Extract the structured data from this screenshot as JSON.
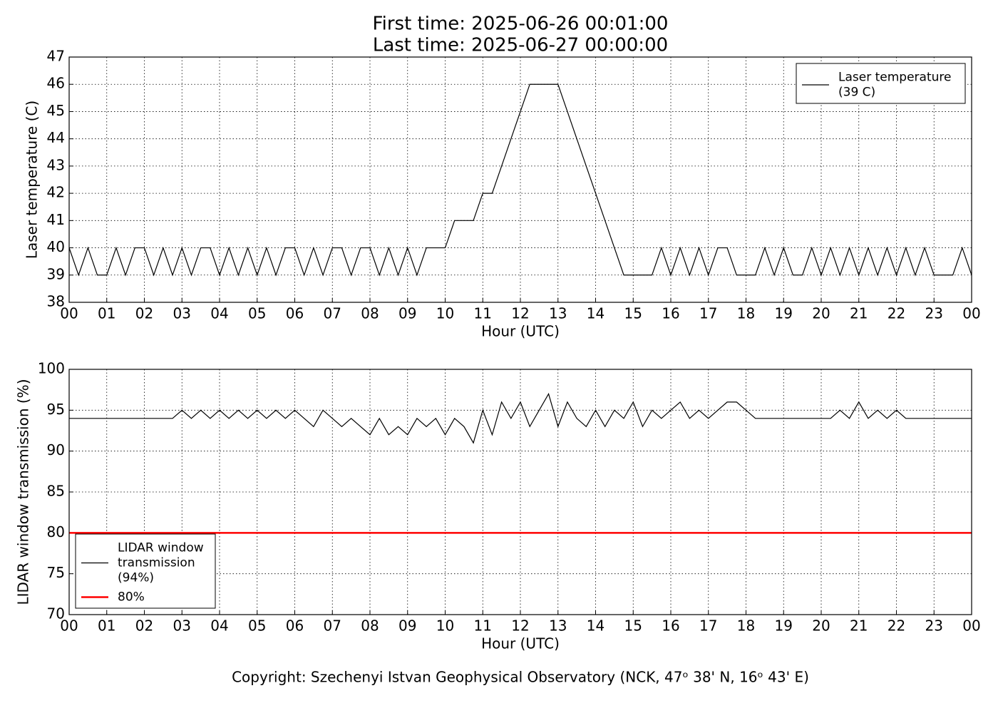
{
  "title": [
    "First time: 2025-06-26 00:01:00",
    "Last time: 2025-06-27 00:00:00"
  ],
  "footer": "Copyright: Szechenyi Istvan Geophysical Observatory (NCK, 47ᵒ  38' N, 16ᵒ  43' E)",
  "chart_data": [
    {
      "type": "line",
      "ylabel": "Laser temperature (C)",
      "xlabel": "Hour (UTC)",
      "xlim": [
        0,
        24
      ],
      "ylim": [
        38,
        47
      ],
      "grid": true,
      "legend": "upper right",
      "xticks": [
        {
          "value": 0,
          "label": "00"
        },
        {
          "value": 1,
          "label": "01"
        },
        {
          "value": 2,
          "label": "02"
        },
        {
          "value": 3,
          "label": "03"
        },
        {
          "value": 4,
          "label": "04"
        },
        {
          "value": 5,
          "label": "05"
        },
        {
          "value": 6,
          "label": "06"
        },
        {
          "value": 7,
          "label": "07"
        },
        {
          "value": 8,
          "label": "08"
        },
        {
          "value": 9,
          "label": "09"
        },
        10,
        11,
        12,
        13,
        14,
        15,
        16,
        17,
        18,
        19,
        20,
        21,
        22,
        23,
        {
          "value": 24,
          "label": "00"
        }
      ],
      "yticks": [
        38,
        39,
        40,
        41,
        42,
        43,
        44,
        45,
        46,
        47
      ],
      "series": [
        {
          "name": "Laser temperature\n(39 C)",
          "color": "#000000",
          "x": [
            0,
            0.25,
            0.5,
            0.75,
            1,
            1.25,
            1.5,
            1.75,
            2,
            2.25,
            2.5,
            2.75,
            3,
            3.25,
            3.5,
            3.75,
            4,
            4.25,
            4.5,
            4.75,
            5,
            5.25,
            5.5,
            5.75,
            6,
            6.25,
            6.5,
            6.75,
            7,
            7.25,
            7.5,
            7.75,
            8,
            8.25,
            8.5,
            8.75,
            9,
            9.25,
            9.5,
            9.75,
            10,
            10.25,
            10.5,
            10.75,
            11,
            11.25,
            11.5,
            11.75,
            12,
            12.25,
            12.5,
            12.75,
            13,
            13.25,
            13.5,
            13.75,
            14,
            14.25,
            14.5,
            14.75,
            15,
            15.25,
            15.5,
            15.75,
            16,
            16.25,
            16.5,
            16.75,
            17,
            17.25,
            17.5,
            17.75,
            18,
            18.25,
            18.5,
            18.75,
            19,
            19.25,
            19.5,
            19.75,
            20,
            20.25,
            20.5,
            20.75,
            21,
            21.25,
            21.5,
            21.75,
            22,
            22.25,
            22.5,
            22.75,
            23,
            23.25,
            23.5,
            23.75,
            24
          ],
          "values": [
            40,
            39,
            40,
            39,
            39,
            40,
            39,
            40,
            40,
            39,
            40,
            39,
            40,
            39,
            40,
            40,
            39,
            40,
            39,
            40,
            39,
            40,
            39,
            40,
            40,
            39,
            40,
            39,
            40,
            40,
            39,
            40,
            40,
            39,
            40,
            39,
            40,
            39,
            40,
            40,
            40,
            41,
            41,
            41,
            42,
            42,
            43,
            44,
            45,
            46,
            46,
            46,
            46,
            45,
            44,
            43,
            42,
            41,
            40,
            39,
            39,
            39,
            39,
            40,
            39,
            40,
            39,
            40,
            39,
            40,
            40,
            39,
            39,
            39,
            40,
            39,
            40,
            39,
            39,
            40,
            39,
            40,
            39,
            40,
            39,
            40,
            39,
            40,
            39,
            40,
            39,
            40,
            39,
            39,
            39,
            40,
            39
          ]
        }
      ]
    },
    {
      "type": "line",
      "ylabel": "LIDAR window transmission (%)",
      "xlabel": "Hour (UTC)",
      "xlim": [
        0,
        24
      ],
      "ylim": [
        70,
        100
      ],
      "grid": true,
      "legend": "lower left",
      "xticks": [
        {
          "value": 0,
          "label": "00"
        },
        {
          "value": 1,
          "label": "01"
        },
        {
          "value": 2,
          "label": "02"
        },
        {
          "value": 3,
          "label": "03"
        },
        {
          "value": 4,
          "label": "04"
        },
        {
          "value": 5,
          "label": "05"
        },
        {
          "value": 6,
          "label": "06"
        },
        {
          "value": 7,
          "label": "07"
        },
        {
          "value": 8,
          "label": "08"
        },
        {
          "value": 9,
          "label": "09"
        },
        10,
        11,
        12,
        13,
        14,
        15,
        16,
        17,
        18,
        19,
        20,
        21,
        22,
        23,
        {
          "value": 24,
          "label": "00"
        }
      ],
      "yticks": [
        70,
        75,
        80,
        85,
        90,
        95,
        100
      ],
      "series": [
        {
          "name": "LIDAR window\ntransmission\n(94%)",
          "color": "#000000",
          "x": [
            0,
            0.25,
            0.5,
            0.75,
            1,
            1.25,
            1.5,
            1.75,
            2,
            2.25,
            2.5,
            2.75,
            3,
            3.25,
            3.5,
            3.75,
            4,
            4.25,
            4.5,
            4.75,
            5,
            5.25,
            5.5,
            5.75,
            6,
            6.25,
            6.5,
            6.75,
            7,
            7.25,
            7.5,
            7.75,
            8,
            8.25,
            8.5,
            8.75,
            9,
            9.25,
            9.5,
            9.75,
            10,
            10.25,
            10.5,
            10.75,
            11,
            11.25,
            11.5,
            11.75,
            12,
            12.25,
            12.5,
            12.75,
            13,
            13.25,
            13.5,
            13.75,
            14,
            14.25,
            14.5,
            14.75,
            15,
            15.25,
            15.5,
            15.75,
            16,
            16.25,
            16.5,
            16.75,
            17,
            17.25,
            17.5,
            17.75,
            18,
            18.25,
            18.5,
            18.75,
            19,
            19.25,
            19.5,
            19.75,
            20,
            20.25,
            20.5,
            20.75,
            21,
            21.25,
            21.5,
            21.75,
            22,
            22.25,
            22.5,
            22.75,
            23,
            23.25,
            23.5,
            23.75,
            24
          ],
          "values": [
            94,
            94,
            94,
            94,
            94,
            94,
            94,
            94,
            94,
            94,
            94,
            94,
            95,
            94,
            95,
            94,
            95,
            94,
            95,
            94,
            95,
            94,
            95,
            94,
            95,
            94,
            93,
            95,
            94,
            93,
            94,
            93,
            92,
            94,
            92,
            93,
            92,
            94,
            93,
            94,
            92,
            94,
            93,
            91,
            95,
            92,
            96,
            94,
            96,
            93,
            95,
            97,
            93,
            96,
            94,
            93,
            95,
            93,
            95,
            94,
            96,
            93,
            95,
            94,
            95,
            96,
            94,
            95,
            94,
            95,
            96,
            96,
            95,
            94,
            94,
            94,
            94,
            94,
            94,
            94,
            94,
            94,
            95,
            94,
            96,
            94,
            95,
            94,
            95,
            94,
            94,
            94,
            94,
            94,
            94,
            94,
            94
          ]
        },
        {
          "name": "80%",
          "color": "#ff0000",
          "x": [
            0,
            24
          ],
          "values": [
            80,
            80
          ]
        }
      ]
    }
  ]
}
